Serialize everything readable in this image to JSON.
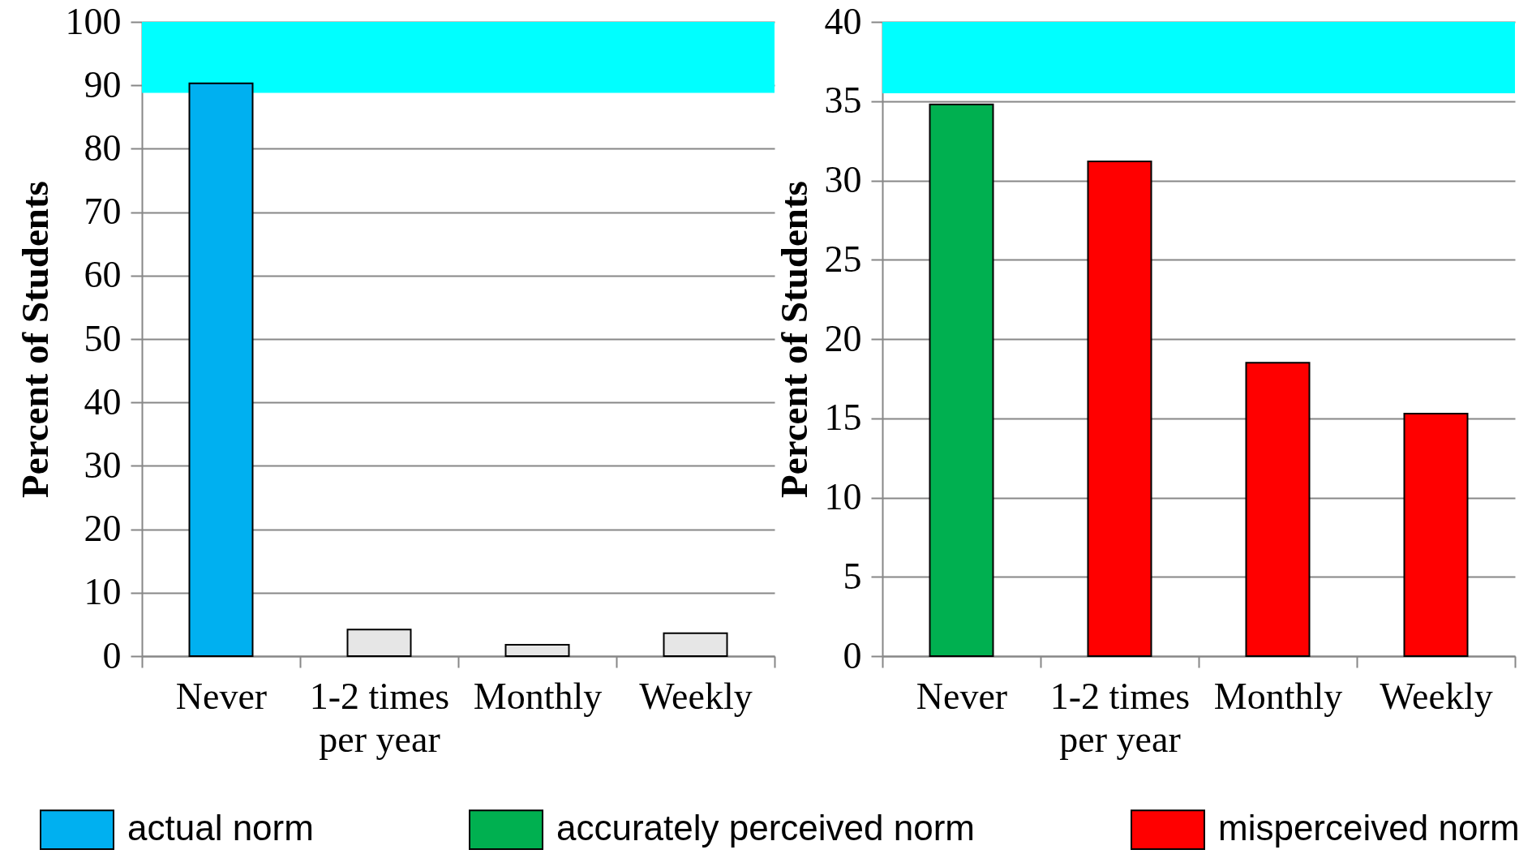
{
  "chart_data": [
    {
      "type": "bar",
      "categories": [
        "Never",
        "1-2 times per year",
        "Monthly",
        "Weekly"
      ],
      "series": [
        {
          "name": "actual norm",
          "color": "#00b0f0",
          "values": [
            90.3,
            null,
            null,
            null
          ]
        },
        {
          "color": "#e6e6e6",
          "values": [
            null,
            4.2,
            1.8,
            3.6
          ]
        }
      ],
      "ylabel": "Percent of Students",
      "ylim": [
        0,
        100
      ],
      "yticks": [
        0,
        10,
        20,
        30,
        40,
        50,
        60,
        70,
        80,
        90,
        100
      ],
      "grid": "y",
      "legend": "bottom",
      "bands": [
        {
          "axis": "y",
          "from": 88.8,
          "to": 100,
          "color": "#00ffff"
        }
      ]
    },
    {
      "type": "bar",
      "categories": [
        "Never",
        "1-2 times per year",
        "Monthly",
        "Weekly"
      ],
      "series": [
        {
          "name": "accurately perceived norm",
          "color": "#00b050",
          "values": [
            34.8,
            null,
            null,
            null
          ]
        },
        {
          "name": "misperceived norm",
          "color": "#ff0000",
          "values": [
            null,
            31.2,
            18.5,
            15.3
          ]
        }
      ],
      "ylabel": "Percent of Students",
      "ylim": [
        0,
        40
      ],
      "yticks": [
        0,
        5,
        10,
        15,
        20,
        25,
        30,
        35,
        40
      ],
      "grid": "y",
      "legend": "bottom",
      "bands": [
        {
          "axis": "y",
          "from": 35.5,
          "to": 40,
          "color": "#00ffff"
        }
      ]
    }
  ]
}
